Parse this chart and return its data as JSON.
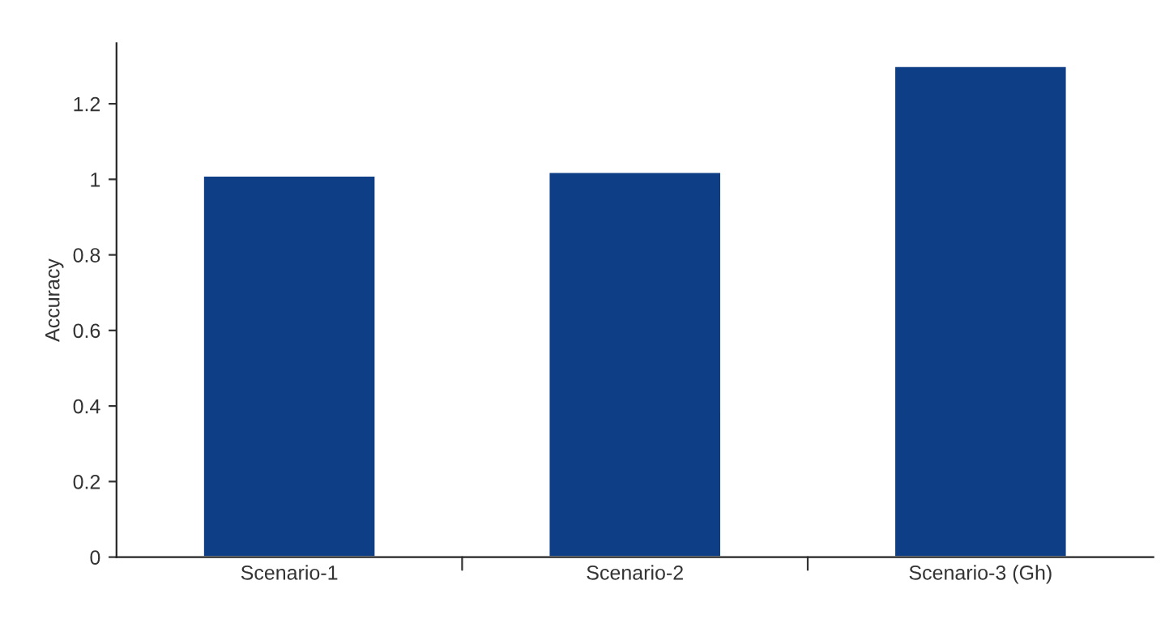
{
  "chart_data": {
    "type": "bar",
    "ylabel": "Accuracy",
    "categories": [
      "Scenario-1",
      "Scenario-2",
      "Scenario-3 (Gh)"
    ],
    "values": [
      1.01,
      1.02,
      1.3
    ],
    "color": "#0e3f86",
    "ylim": [
      0,
      1.36
    ],
    "yticks": [
      0,
      0.2,
      0.4,
      0.6,
      0.8,
      1,
      1.2
    ],
    "grid": false,
    "legend": false
  }
}
